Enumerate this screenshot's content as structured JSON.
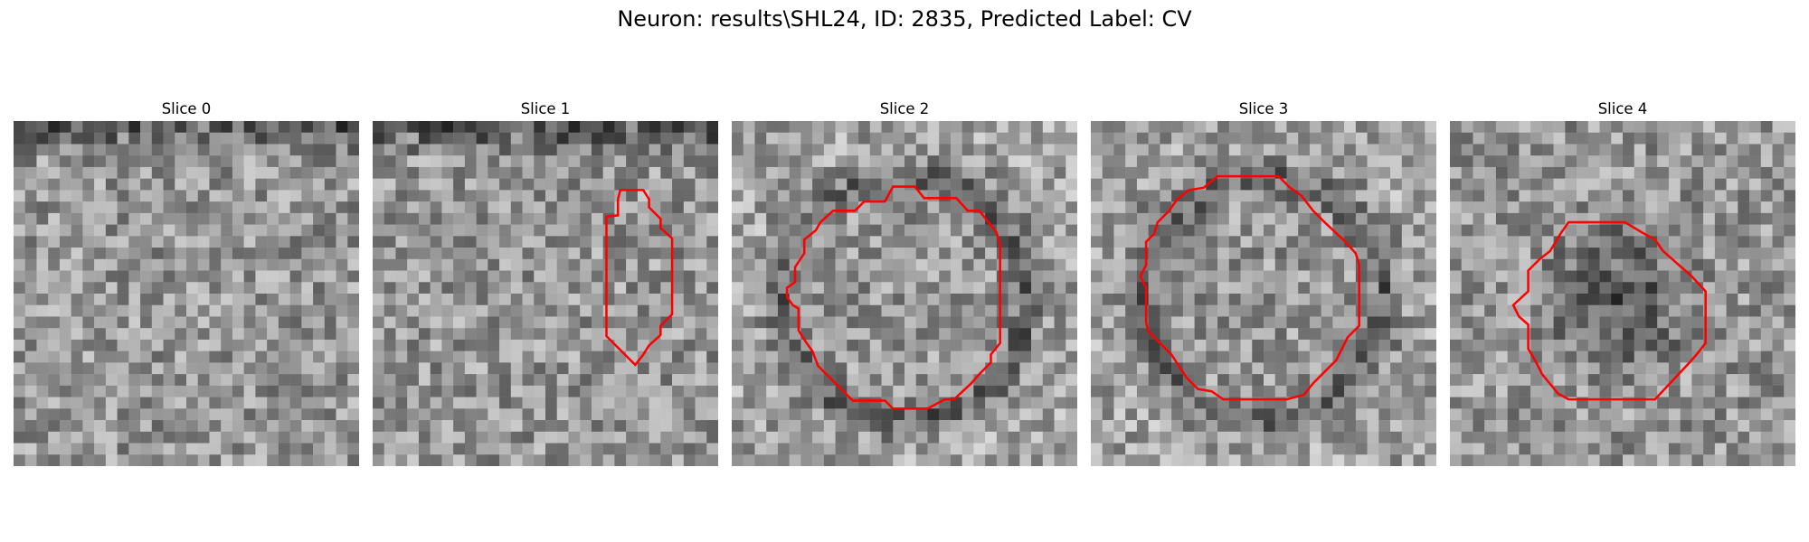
{
  "figure": {
    "title": "Neuron: results\\SHL24, ID: 2835, Predicted Label: CV"
  },
  "panels": [
    {
      "title": "Slice 0",
      "grid_size": 30,
      "seed": 11,
      "darkness_pattern": "top-dark",
      "contour": []
    },
    {
      "title": "Slice 1",
      "grid_size": 30,
      "seed": 23,
      "darkness_pattern": "top-dark",
      "contour": [
        [
          21.5,
          6.0
        ],
        [
          23.5,
          6.0
        ],
        [
          24.0,
          6.8
        ],
        [
          24.0,
          7.5
        ],
        [
          25.0,
          8.5
        ],
        [
          25.0,
          9.3
        ],
        [
          26.0,
          10.2
        ],
        [
          26.0,
          16.8
        ],
        [
          25.0,
          17.8
        ],
        [
          25.0,
          18.6
        ],
        [
          24.0,
          19.5
        ],
        [
          23.5,
          20.3
        ],
        [
          22.8,
          21.2
        ],
        [
          21.9,
          20.3
        ],
        [
          21.0,
          19.4
        ],
        [
          20.3,
          18.7
        ],
        [
          20.3,
          8.3
        ],
        [
          21.3,
          8.2
        ],
        [
          21.3,
          6.8
        ]
      ]
    },
    {
      "title": "Slice 2",
      "grid_size": 30,
      "seed": 37,
      "darkness_pattern": "ring",
      "contour": [
        [
          14.0,
          5.7
        ],
        [
          15.9,
          5.7
        ],
        [
          16.7,
          6.7
        ],
        [
          19.5,
          6.7
        ],
        [
          20.5,
          7.8
        ],
        [
          21.5,
          7.8
        ],
        [
          22.3,
          8.8
        ],
        [
          23.0,
          9.7
        ],
        [
          23.3,
          10.8
        ],
        [
          23.3,
          19.3
        ],
        [
          22.5,
          20.3
        ],
        [
          22.5,
          21.0
        ],
        [
          21.5,
          22.0
        ],
        [
          20.8,
          22.8
        ],
        [
          19.3,
          24.2
        ],
        [
          18.5,
          24.2
        ],
        [
          17.0,
          25.0
        ],
        [
          14.0,
          25.0
        ],
        [
          13.3,
          24.3
        ],
        [
          10.5,
          24.3
        ],
        [
          9.5,
          23.3
        ],
        [
          8.5,
          22.3
        ],
        [
          7.5,
          21.3
        ],
        [
          7.0,
          20.0
        ],
        [
          6.5,
          19.3
        ],
        [
          5.8,
          18.2
        ],
        [
          5.8,
          16.3
        ],
        [
          5.3,
          16.0
        ],
        [
          4.8,
          15.3
        ],
        [
          4.8,
          14.5
        ],
        [
          5.5,
          14.0
        ],
        [
          5.5,
          12.7
        ],
        [
          6.3,
          11.5
        ],
        [
          6.3,
          10.3
        ],
        [
          7.3,
          9.5
        ],
        [
          7.7,
          8.8
        ],
        [
          8.8,
          7.8
        ],
        [
          10.7,
          7.8
        ],
        [
          11.5,
          7.0
        ],
        [
          13.3,
          7.0
        ]
      ]
    },
    {
      "title": "Slice 3",
      "grid_size": 30,
      "seed": 53,
      "darkness_pattern": "ring",
      "contour": [
        [
          11.0,
          4.8
        ],
        [
          16.3,
          4.8
        ],
        [
          17.3,
          5.8
        ],
        [
          18.3,
          6.5
        ],
        [
          19.3,
          7.8
        ],
        [
          20.3,
          8.8
        ],
        [
          22.0,
          10.4
        ],
        [
          23.0,
          11.5
        ],
        [
          23.3,
          12.5
        ],
        [
          23.3,
          17.8
        ],
        [
          22.3,
          18.8
        ],
        [
          21.3,
          20.8
        ],
        [
          20.3,
          21.8
        ],
        [
          19.3,
          22.8
        ],
        [
          18.5,
          23.8
        ],
        [
          17.0,
          24.2
        ],
        [
          11.5,
          24.2
        ],
        [
          10.5,
          23.5
        ],
        [
          9.3,
          23.3
        ],
        [
          8.3,
          22.3
        ],
        [
          7.0,
          20.3
        ],
        [
          6.0,
          19.3
        ],
        [
          5.0,
          18.3
        ],
        [
          4.8,
          17.5
        ],
        [
          4.8,
          14.5
        ],
        [
          4.3,
          13.5
        ],
        [
          4.8,
          12.5
        ],
        [
          4.8,
          10.5
        ],
        [
          5.5,
          9.8
        ],
        [
          5.8,
          8.8
        ],
        [
          6.8,
          7.8
        ],
        [
          7.5,
          6.8
        ],
        [
          8.5,
          6.0
        ],
        [
          9.8,
          5.8
        ]
      ]
    },
    {
      "title": "Slice 4",
      "grid_size": 30,
      "seed": 71,
      "darkness_pattern": "blob",
      "contour": [
        [
          10.3,
          8.8
        ],
        [
          15.2,
          8.8
        ],
        [
          16.7,
          9.7
        ],
        [
          17.8,
          10.3
        ],
        [
          18.5,
          11.3
        ],
        [
          19.3,
          12.0
        ],
        [
          20.2,
          12.8
        ],
        [
          21.0,
          13.5
        ],
        [
          22.2,
          14.8
        ],
        [
          22.2,
          19.3
        ],
        [
          21.5,
          20.2
        ],
        [
          20.8,
          21.0
        ],
        [
          17.8,
          24.2
        ],
        [
          10.3,
          24.2
        ],
        [
          9.4,
          23.7
        ],
        [
          8.0,
          22.0
        ],
        [
          7.5,
          21.0
        ],
        [
          6.8,
          19.8
        ],
        [
          6.8,
          17.7
        ],
        [
          6.0,
          17.0
        ],
        [
          5.5,
          16.0
        ],
        [
          6.8,
          14.8
        ],
        [
          6.8,
          13.0
        ],
        [
          7.8,
          12.0
        ],
        [
          8.7,
          11.3
        ],
        [
          9.6,
          9.8
        ]
      ]
    }
  ],
  "colors": {
    "contour": "#ff0000",
    "background": "#ffffff",
    "text": "#000000"
  }
}
